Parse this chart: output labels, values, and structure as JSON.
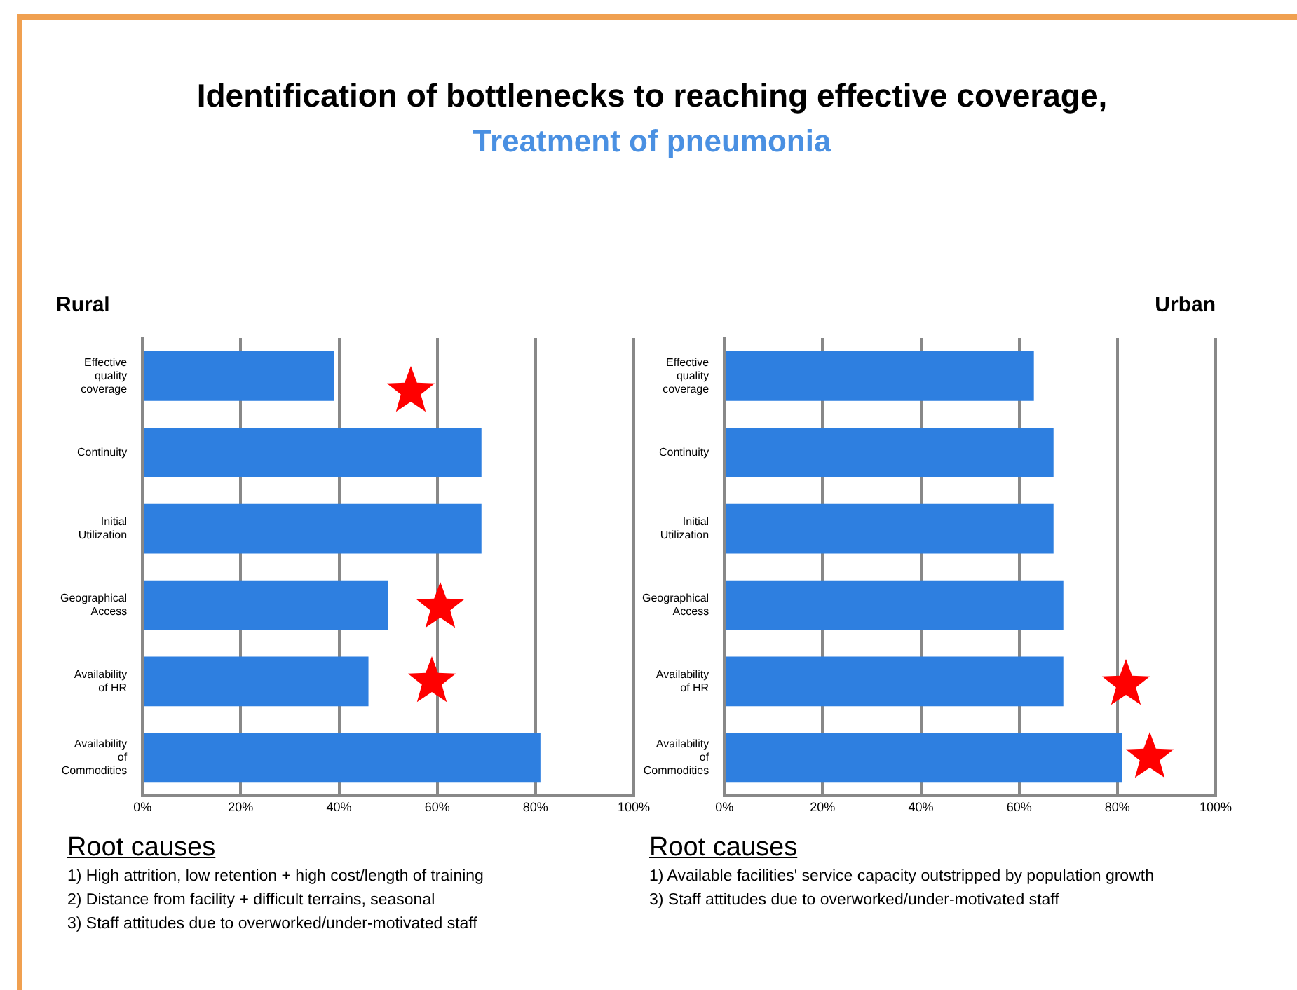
{
  "chart_data": [
    {
      "type": "other",
      "title": "Identification of bottlenecks to reaching effective coverage,",
      "subtitle": "Treatment of pneumonia"
    },
    {
      "type": "bar",
      "orientation": "horizontal",
      "title": "Rural",
      "categories": [
        "Effective quality coverage",
        "Continuity",
        "Initial Utilization",
        "Geographical Access",
        "Availability of HR",
        "Availability of Commodities"
      ],
      "values": [
        39,
        69,
        69,
        50,
        46,
        81
      ],
      "color": "#2e7fe0",
      "xlim": [
        0,
        100
      ],
      "xticks": [
        {
          "value": 0,
          "label": "0%"
        },
        {
          "value": 20,
          "label": "20%"
        },
        {
          "value": 40,
          "label": "40%"
        },
        {
          "value": 60,
          "label": "60%"
        },
        {
          "value": 80,
          "label": "80%"
        },
        {
          "value": 100,
          "label": "100%"
        }
      ],
      "grid": "x",
      "legend": false,
      "annotations": [
        "Root causes",
        "1) High attrition, low retention + high cost/length of training",
        "2) Distance from facility + difficult terrains, seasonal",
        "3) Staff attitudes due to overworked/under-motivated staff"
      ]
    },
    {
      "type": "bar",
      "orientation": "horizontal",
      "title": "Urban",
      "categories": [
        "Effective quality coverage",
        "Continuity",
        "Initial Utilization",
        "Geographical Access",
        "Availability of HR",
        "Availability of Commodities"
      ],
      "values": [
        63,
        67,
        67,
        69,
        69,
        81
      ],
      "color": "#2e7fe0",
      "xlim": [
        0,
        100
      ],
      "xticks": [
        {
          "value": 0,
          "label": "0%"
        },
        {
          "value": 20,
          "label": "20%"
        },
        {
          "value": 40,
          "label": "40%"
        },
        {
          "value": 60,
          "label": "60%"
        },
        {
          "value": 80,
          "label": "80%"
        },
        {
          "value": 100,
          "label": "100%"
        }
      ],
      "grid": "x",
      "legend": false,
      "annotations": [
        "Root causes",
        "1) Available facilities' service capacity outstripped by population growth",
        "3) Staff attitudes due to overworked/under-motivated staff"
      ]
    }
  ]
}
